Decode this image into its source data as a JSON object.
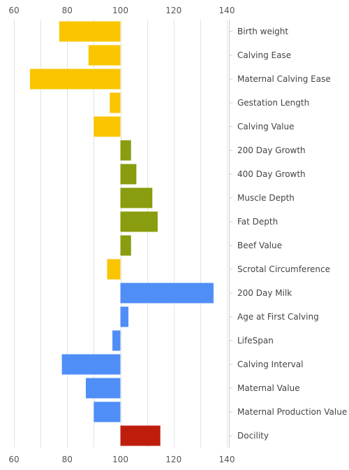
{
  "chart_data": {
    "type": "bar",
    "orientation": "horizontal",
    "baseline": 100,
    "categories": [
      "Birth weight",
      "Calving Ease",
      "Maternal Calving Ease",
      "Gestation Length",
      "Calving Value",
      "200 Day Growth",
      "400 Day Growth",
      "Muscle Depth",
      "Fat Depth",
      "Beef Value",
      "Scrotal Circumference",
      "200 Day Milk",
      "Age at First Calving",
      "LifeSpan",
      "Calving Interval",
      "Maternal Value",
      "Maternal Production Value",
      "Docility"
    ],
    "values": [
      77,
      88,
      66,
      96,
      90,
      104,
      106,
      112,
      114,
      104,
      95,
      135,
      103,
      97,
      78,
      87,
      90,
      115
    ],
    "colors": [
      "#F9C500",
      "#F9C500",
      "#F9C500",
      "#F9C500",
      "#F9C500",
      "#8A9C0F",
      "#8A9C0F",
      "#8A9C0F",
      "#8A9C0F",
      "#8A9C0F",
      "#F9C500",
      "#4F8EF7",
      "#4F8EF7",
      "#4F8EF7",
      "#4F8EF7",
      "#4F8EF7",
      "#4F8EF7",
      "#BF1D0C"
    ],
    "xlim": [
      60,
      140
    ],
    "xticks": [
      "60",
      "80",
      "100",
      "120",
      "140"
    ],
    "tick_label_positions": [
      "top",
      "bottom"
    ],
    "category_labels_side": "right",
    "grid": true,
    "title": "",
    "xlabel": "",
    "ylabel": ""
  }
}
